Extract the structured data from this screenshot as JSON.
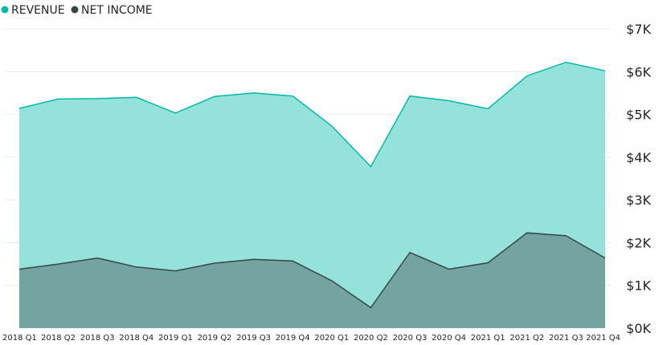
{
  "chart_data": {
    "type": "area",
    "title": "",
    "xlabel": "",
    "ylabel": "",
    "legend_position": "top-left",
    "grid": true,
    "ylim": [
      0,
      7000
    ],
    "y_tick_labels": [
      "$0K",
      "$1K",
      "$2K",
      "$3K",
      "$4K",
      "$5K",
      "$6K",
      "$7K"
    ],
    "categories": [
      "2018 Q1",
      "2018 Q2",
      "2018 Q3",
      "2018 Q4",
      "2019 Q1",
      "2019 Q2",
      "2019 Q3",
      "2019 Q4",
      "2020 Q1",
      "2020 Q2",
      "2020 Q3",
      "2020 Q4",
      "2021 Q1",
      "2021 Q2",
      "2021 Q3",
      "2021 Q4"
    ],
    "series": [
      {
        "name": "REVENUE",
        "color": "#01b8aa",
        "fill": "#95e2db",
        "values": [
          5140,
          5360,
          5370,
          5400,
          5030,
          5420,
          5500,
          5430,
          4730,
          3780,
          5430,
          5320,
          5130,
          5900,
          6220,
          6020
        ]
      },
      {
        "name": "NET INCOME",
        "color": "#374649",
        "fill": "#74a49f",
        "values": [
          1380,
          1500,
          1640,
          1430,
          1340,
          1520,
          1610,
          1570,
          1110,
          480,
          1770,
          1380,
          1530,
          2230,
          2160,
          1640
        ]
      }
    ]
  }
}
